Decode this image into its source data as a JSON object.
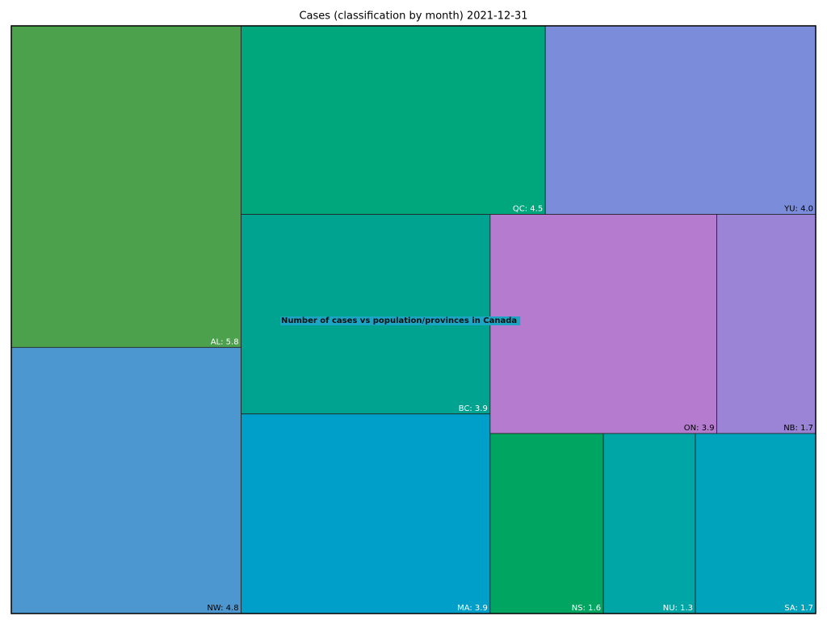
{
  "chart_data": {
    "type": "treemap",
    "title": "Cases (classification by month)  2021-12-31",
    "annotation": "Number of cases vs population/provinces in Canada",
    "values": [
      5.8,
      4.8,
      4.5,
      4.0,
      3.9,
      3.9,
      3.9,
      1.7,
      1.6,
      1.3,
      1.7
    ],
    "value_labels": [
      "AL: 5.8",
      "NW: 4.8",
      "QC: 4.5",
      "YU: 4.0",
      "BC: 3.9",
      "MA: 3.9",
      "ON: 3.9",
      "NB: 1.7",
      "NS: 1.6",
      "NU: 1.3",
      "SA: 1.7"
    ],
    "colors": [
      "#4ca14c",
      "#4d97d1",
      "#00a67c",
      "#7b8cda",
      "#00a290",
      "#009fca",
      "#b57bcf",
      "#9b83d6",
      "#00a562",
      "#00a5a5",
      "#00a3bc"
    ]
  }
}
